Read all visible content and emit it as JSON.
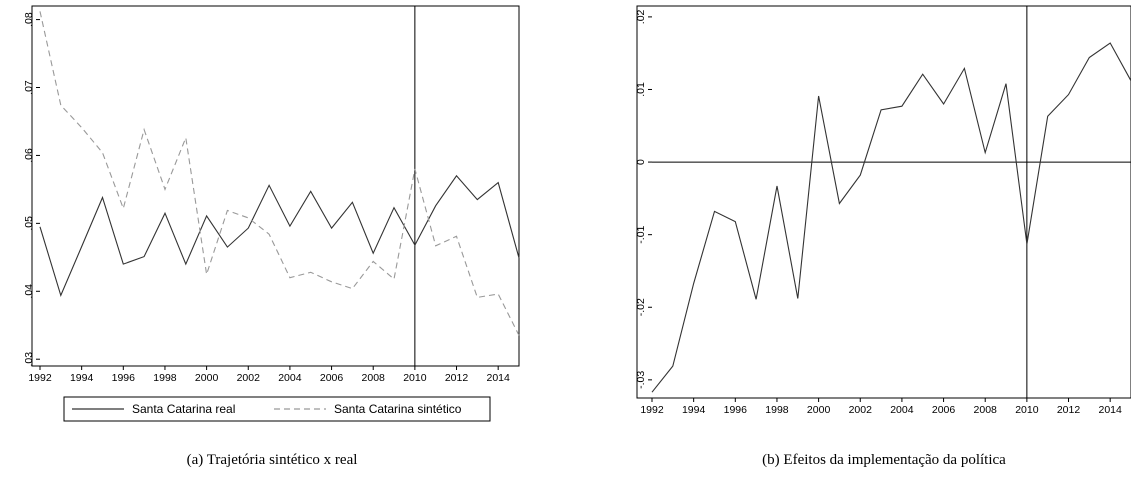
{
  "chart_data": [
    {
      "type": "line",
      "caption": "(a) Trajetória sintético x real",
      "title": "",
      "xlabel": "",
      "ylabel": "",
      "x": [
        1992,
        1993,
        1994,
        1995,
        1996,
        1997,
        1998,
        1999,
        2000,
        2001,
        2002,
        2003,
        2004,
        2005,
        2006,
        2007,
        2008,
        2009,
        2010,
        2011,
        2012,
        2013,
        2014,
        2015
      ],
      "xticks": [
        1992,
        1994,
        1996,
        1998,
        2000,
        2002,
        2004,
        2006,
        2008,
        2010,
        2012,
        2014
      ],
      "xtick_labels": [
        "1992",
        "1994",
        "1996",
        "1998",
        "2000",
        "2002",
        "2004",
        "2006",
        "2008",
        "2010",
        "2012",
        "2014"
      ],
      "xlim": [
        1992,
        2015
      ],
      "ylim": [
        0.029,
        0.082
      ],
      "yticks": [
        0.03,
        0.04,
        0.05,
        0.06,
        0.07,
        0.08
      ],
      "ytick_labels": [
        ".03",
        ".04",
        ".05",
        ".06",
        ".07",
        ".08"
      ],
      "vline": 2010,
      "legend_position": "bottom",
      "series": [
        {
          "name": "Santa Catarina real",
          "style": "solid",
          "color": "#333333",
          "values": [
            0.0495,
            0.0394,
            0.0466,
            0.0538,
            0.044,
            0.0451,
            0.0515,
            0.044,
            0.0511,
            0.0465,
            0.0493,
            0.0556,
            0.0496,
            0.0547,
            0.0493,
            0.0531,
            0.0456,
            0.0523,
            0.0468,
            0.0526,
            0.057,
            0.0535,
            0.056,
            0.0449
          ]
        },
        {
          "name": "Santa Catarina sintético",
          "style": "dashed",
          "color": "#999999",
          "values": [
            0.0812,
            0.0674,
            0.0641,
            0.0604,
            0.0522,
            0.0638,
            0.055,
            0.0626,
            0.0425,
            0.0519,
            0.0508,
            0.0484,
            0.042,
            0.0428,
            0.0414,
            0.0404,
            0.0444,
            0.0418,
            0.058,
            0.0467,
            0.0481,
            0.0391,
            0.0396,
            0.0335
          ]
        }
      ]
    },
    {
      "type": "line",
      "caption": "(b) Efeitos da implementação da política",
      "title": "",
      "xlabel": "",
      "ylabel": "",
      "x": [
        1992,
        1993,
        1994,
        1995,
        1996,
        1997,
        1998,
        1999,
        2000,
        2001,
        2002,
        2003,
        2004,
        2005,
        2006,
        2007,
        2008,
        2009,
        2010,
        2011,
        2012,
        2013,
        2014,
        2015
      ],
      "xticks": [
        1992,
        1994,
        1996,
        1998,
        2000,
        2002,
        2004,
        2006,
        2008,
        2010,
        2012,
        2014
      ],
      "xtick_labels": [
        "1992",
        "1994",
        "1996",
        "1998",
        "2000",
        "2002",
        "2004",
        "2006",
        "2008",
        "2010",
        "2012",
        "2014"
      ],
      "xlim": [
        1992,
        2015
      ],
      "ylim": [
        -0.0325,
        0.0215
      ],
      "yticks": [
        -0.03,
        -0.02,
        -0.01,
        0,
        0.01,
        0.02
      ],
      "ytick_labels": [
        "-.03",
        "-.02",
        "-.01",
        "0",
        ".01",
        ".02"
      ],
      "vline": 2010,
      "hline": 0,
      "series": [
        {
          "name": "",
          "style": "solid",
          "color": "#333333",
          "values": [
            -0.0317,
            -0.0281,
            -0.0167,
            -0.0068,
            -0.0082,
            -0.0189,
            -0.0033,
            -0.0188,
            0.0091,
            -0.0057,
            -0.0018,
            0.0072,
            0.0077,
            0.0121,
            0.008,
            0.0129,
            0.0013,
            0.0108,
            -0.0113,
            0.0063,
            0.0093,
            0.0144,
            0.0164,
            0.0112
          ]
        }
      ]
    }
  ]
}
